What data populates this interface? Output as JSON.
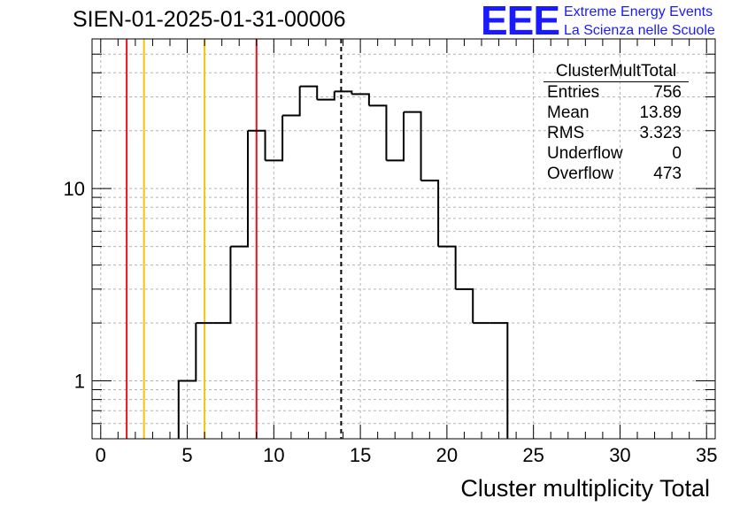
{
  "header": {
    "title": "SIEN-01-2025-01-31-00006",
    "logo": "EEE",
    "logo_line1": "Extreme Energy Events",
    "logo_line2": "La Scienza nelle Scuole"
  },
  "stats_box": {
    "title": "ClusterMultTotal",
    "rows": [
      {
        "label": "Entries",
        "value": "756"
      },
      {
        "label": "Mean",
        "value": "13.89"
      },
      {
        "label": "RMS",
        "value": "3.323"
      },
      {
        "label": "Underflow",
        "value": "0"
      },
      {
        "label": "Overflow",
        "value": "473"
      }
    ]
  },
  "chart_data": {
    "type": "histogram",
    "title": "SIEN-01-2025-01-31-00006",
    "xlabel": "Cluster multiplicity Total",
    "ylabel": "",
    "xlim": [
      -0.5,
      35.5
    ],
    "ylim": [
      0.5,
      60
    ],
    "log_y": true,
    "grid": true,
    "x_ticks": [
      0,
      5,
      10,
      15,
      20,
      25,
      30,
      35
    ],
    "y_ticks": [
      1,
      10
    ],
    "y_tick_labels": [
      "1",
      "10"
    ],
    "bin_width": 1,
    "bin_centers": [
      5,
      6,
      7,
      8,
      9,
      10,
      11,
      12,
      13,
      14,
      15,
      16,
      17,
      18,
      19,
      20,
      21,
      22,
      23
    ],
    "counts": [
      1,
      2,
      2,
      5,
      20,
      14,
      24,
      34,
      29,
      32,
      31,
      27,
      14,
      25,
      11,
      5,
      3,
      2,
      2
    ],
    "vertical_lines": [
      {
        "x": 1.5,
        "color": "#e8141d",
        "style": "solid"
      },
      {
        "x": 2.5,
        "color": "#f2c40a",
        "style": "solid"
      },
      {
        "x": 6.0,
        "color": "#f2c40a",
        "style": "solid"
      },
      {
        "x": 9.0,
        "color": "#e8141d",
        "style": "solid"
      },
      {
        "x": 13.89,
        "color": "#000000",
        "style": "dashed"
      }
    ]
  }
}
